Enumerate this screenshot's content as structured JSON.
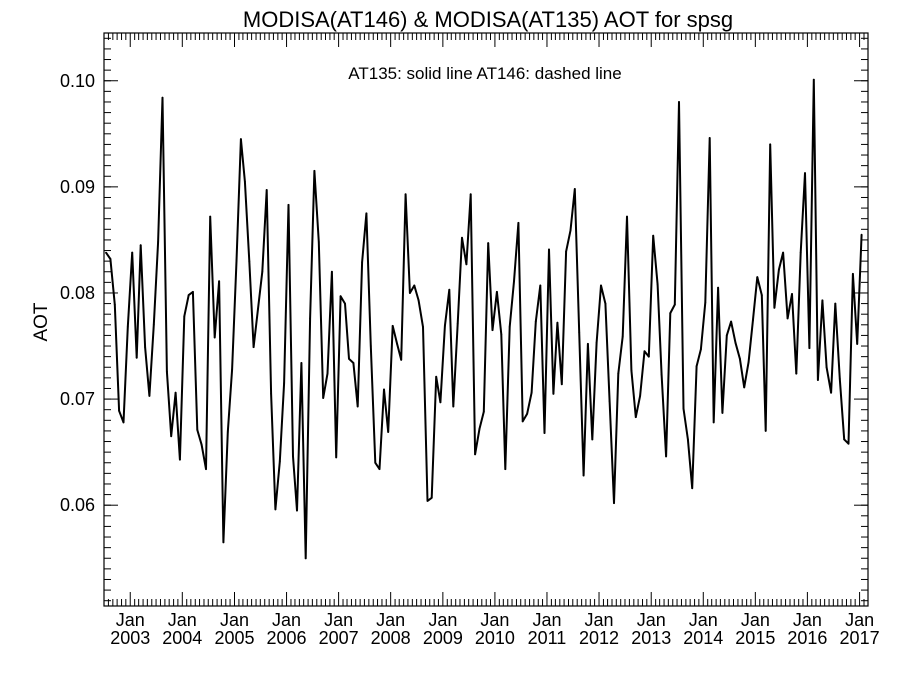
{
  "chart_data": {
    "type": "line",
    "title": "MODISA(AT146) & MODISA(AT135)  AOT for spsg",
    "annotation": "AT135: solid line   AT146: dashed line",
    "ylabel": "AOT",
    "xlabel": "",
    "ylim": [
      0.0505,
      0.1045
    ],
    "xlim": [
      "2002-07-01",
      "2017-03-01"
    ],
    "yticks": [
      "0.06",
      "0.07",
      "0.08",
      "0.09",
      "0.10"
    ],
    "xticks": [
      {
        "month": "Jan",
        "year": "2003"
      },
      {
        "month": "Jan",
        "year": "2004"
      },
      {
        "month": "Jan",
        "year": "2005"
      },
      {
        "month": "Jan",
        "year": "2006"
      },
      {
        "month": "Jan",
        "year": "2007"
      },
      {
        "month": "Jan",
        "year": "2008"
      },
      {
        "month": "Jan",
        "year": "2009"
      },
      {
        "month": "Jan",
        "year": "2010"
      },
      {
        "month": "Jan",
        "year": "2011"
      },
      {
        "month": "Jan",
        "year": "2012"
      },
      {
        "month": "Jan",
        "year": "2013"
      },
      {
        "month": "Jan",
        "year": "2014"
      },
      {
        "month": "Jan",
        "year": "2015"
      },
      {
        "month": "Jan",
        "year": "2016"
      },
      {
        "month": "Jan",
        "year": "2017"
      }
    ],
    "grid": false,
    "legend": "none",
    "series": [
      {
        "name": "AT135",
        "line_style": "solid",
        "color": "#000000",
        "points": [
          [
            "2002-07-15",
            0.0838
          ],
          [
            "2002-08-15",
            0.0832
          ],
          [
            "2002-09-15",
            0.0789
          ],
          [
            "2002-10-15",
            0.0689
          ],
          [
            "2002-11-15",
            0.0678
          ],
          [
            "2002-12-15",
            0.0768
          ],
          [
            "2003-01-15",
            0.0838
          ],
          [
            "2003-02-15",
            0.0739
          ],
          [
            "2003-03-15",
            0.0845
          ],
          [
            "2003-04-15",
            0.0749
          ],
          [
            "2003-05-15",
            0.0703
          ],
          [
            "2003-06-15",
            0.077
          ],
          [
            "2003-07-15",
            0.0848
          ],
          [
            "2003-08-15",
            0.0984
          ],
          [
            "2003-09-15",
            0.0726
          ],
          [
            "2003-10-15",
            0.0665
          ],
          [
            "2003-11-15",
            0.0706
          ],
          [
            "2003-12-15",
            0.0643
          ],
          [
            "2004-01-15",
            0.0778
          ],
          [
            "2004-02-15",
            0.0798
          ],
          [
            "2004-03-15",
            0.0801
          ],
          [
            "2004-04-15",
            0.0671
          ],
          [
            "2004-05-15",
            0.0657
          ],
          [
            "2004-06-15",
            0.0634
          ],
          [
            "2004-07-15",
            0.0872
          ],
          [
            "2004-08-15",
            0.0758
          ],
          [
            "2004-09-15",
            0.0811
          ],
          [
            "2004-10-15",
            0.0565
          ],
          [
            "2004-11-15",
            0.0669
          ],
          [
            "2004-12-15",
            0.0728
          ],
          [
            "2005-01-15",
            0.083
          ],
          [
            "2005-02-15",
            0.0945
          ],
          [
            "2005-03-15",
            0.0905
          ],
          [
            "2005-04-15",
            0.083
          ],
          [
            "2005-05-15",
            0.0749
          ],
          [
            "2005-06-15",
            0.0785
          ],
          [
            "2005-07-15",
            0.082
          ],
          [
            "2005-08-15",
            0.0897
          ],
          [
            "2005-09-15",
            0.0705
          ],
          [
            "2005-10-15",
            0.0596
          ],
          [
            "2005-11-15",
            0.0641
          ],
          [
            "2005-12-15",
            0.0715
          ],
          [
            "2006-01-15",
            0.0883
          ],
          [
            "2006-02-15",
            0.0646
          ],
          [
            "2006-03-15",
            0.0595
          ],
          [
            "2006-04-15",
            0.0734
          ],
          [
            "2006-05-15",
            0.055
          ],
          [
            "2006-06-15",
            0.0776
          ],
          [
            "2006-07-15",
            0.0915
          ],
          [
            "2006-08-15",
            0.0848
          ],
          [
            "2006-09-15",
            0.0701
          ],
          [
            "2006-10-15",
            0.0724
          ],
          [
            "2006-11-15",
            0.082
          ],
          [
            "2006-12-15",
            0.0645
          ],
          [
            "2007-01-15",
            0.0797
          ],
          [
            "2007-02-15",
            0.079
          ],
          [
            "2007-03-15",
            0.0738
          ],
          [
            "2007-04-15",
            0.0734
          ],
          [
            "2007-05-15",
            0.0693
          ],
          [
            "2007-06-15",
            0.0829
          ],
          [
            "2007-07-15",
            0.0875
          ],
          [
            "2007-08-15",
            0.075
          ],
          [
            "2007-09-15",
            0.064
          ],
          [
            "2007-10-15",
            0.0634
          ],
          [
            "2007-11-15",
            0.0709
          ],
          [
            "2007-12-15",
            0.0669
          ],
          [
            "2008-01-15",
            0.0769
          ],
          [
            "2008-02-15",
            0.0752
          ],
          [
            "2008-03-15",
            0.0737
          ],
          [
            "2008-04-15",
            0.0893
          ],
          [
            "2008-05-15",
            0.08
          ],
          [
            "2008-06-15",
            0.0807
          ],
          [
            "2008-07-15",
            0.0793
          ],
          [
            "2008-08-15",
            0.0768
          ],
          [
            "2008-09-15",
            0.0604
          ],
          [
            "2008-10-15",
            0.0607
          ],
          [
            "2008-11-15",
            0.0721
          ],
          [
            "2008-12-15",
            0.0697
          ],
          [
            "2009-01-15",
            0.0769
          ],
          [
            "2009-02-15",
            0.0803
          ],
          [
            "2009-03-15",
            0.0693
          ],
          [
            "2009-04-15",
            0.0771
          ],
          [
            "2009-05-15",
            0.0852
          ],
          [
            "2009-06-15",
            0.0827
          ],
          [
            "2009-07-15",
            0.0893
          ],
          [
            "2009-08-15",
            0.0648
          ],
          [
            "2009-09-15",
            0.0672
          ],
          [
            "2009-10-15",
            0.0688
          ],
          [
            "2009-11-15",
            0.0847
          ],
          [
            "2009-12-15",
            0.0765
          ],
          [
            "2010-01-15",
            0.0801
          ],
          [
            "2010-02-15",
            0.0761
          ],
          [
            "2010-03-15",
            0.0634
          ],
          [
            "2010-04-15",
            0.0768
          ],
          [
            "2010-05-15",
            0.0811
          ],
          [
            "2010-06-15",
            0.0866
          ],
          [
            "2010-07-15",
            0.0679
          ],
          [
            "2010-08-15",
            0.0686
          ],
          [
            "2010-09-15",
            0.0706
          ],
          [
            "2010-10-15",
            0.0773
          ],
          [
            "2010-11-15",
            0.0807
          ],
          [
            "2010-12-15",
            0.0668
          ],
          [
            "2011-01-15",
            0.0841
          ],
          [
            "2011-02-15",
            0.0705
          ],
          [
            "2011-03-15",
            0.0772
          ],
          [
            "2011-04-15",
            0.0714
          ],
          [
            "2011-05-15",
            0.0839
          ],
          [
            "2011-06-15",
            0.0859
          ],
          [
            "2011-07-15",
            0.0898
          ],
          [
            "2011-08-15",
            0.0763
          ],
          [
            "2011-09-15",
            0.0628
          ],
          [
            "2011-10-15",
            0.0752
          ],
          [
            "2011-11-15",
            0.0662
          ],
          [
            "2011-12-15",
            0.0753
          ],
          [
            "2012-01-15",
            0.0807
          ],
          [
            "2012-02-15",
            0.079
          ],
          [
            "2012-03-15",
            0.0698
          ],
          [
            "2012-04-15",
            0.0602
          ],
          [
            "2012-05-15",
            0.0724
          ],
          [
            "2012-06-15",
            0.0759
          ],
          [
            "2012-07-15",
            0.0872
          ],
          [
            "2012-08-15",
            0.0727
          ],
          [
            "2012-09-15",
            0.0683
          ],
          [
            "2012-10-15",
            0.0703
          ],
          [
            "2012-11-15",
            0.0745
          ],
          [
            "2012-12-15",
            0.074
          ],
          [
            "2013-01-15",
            0.0854
          ],
          [
            "2013-02-15",
            0.0808
          ],
          [
            "2013-03-15",
            0.0723
          ],
          [
            "2013-04-15",
            0.0646
          ],
          [
            "2013-05-15",
            0.0781
          ],
          [
            "2013-06-15",
            0.0789
          ],
          [
            "2013-07-15",
            0.098
          ],
          [
            "2013-08-15",
            0.0691
          ],
          [
            "2013-09-15",
            0.0662
          ],
          [
            "2013-10-15",
            0.0616
          ],
          [
            "2013-11-15",
            0.0731
          ],
          [
            "2013-12-15",
            0.0747
          ],
          [
            "2014-01-15",
            0.0791
          ],
          [
            "2014-02-15",
            0.0946
          ],
          [
            "2014-03-15",
            0.0678
          ],
          [
            "2014-04-15",
            0.0805
          ],
          [
            "2014-05-15",
            0.0687
          ],
          [
            "2014-06-15",
            0.076
          ],
          [
            "2014-07-15",
            0.0773
          ],
          [
            "2014-08-15",
            0.0753
          ],
          [
            "2014-09-15",
            0.0738
          ],
          [
            "2014-10-15",
            0.0711
          ],
          [
            "2014-11-15",
            0.0735
          ],
          [
            "2014-12-15",
            0.0774
          ],
          [
            "2015-01-15",
            0.0815
          ],
          [
            "2015-02-15",
            0.0798
          ],
          [
            "2015-03-15",
            0.067
          ],
          [
            "2015-04-15",
            0.094
          ],
          [
            "2015-05-15",
            0.0786
          ],
          [
            "2015-06-15",
            0.0822
          ],
          [
            "2015-07-15",
            0.0838
          ],
          [
            "2015-08-15",
            0.0776
          ],
          [
            "2015-09-15",
            0.0799
          ],
          [
            "2015-10-15",
            0.0724
          ],
          [
            "2015-11-15",
            0.0838
          ],
          [
            "2015-12-15",
            0.0913
          ],
          [
            "2016-01-15",
            0.0748
          ],
          [
            "2016-02-15",
            0.1001
          ],
          [
            "2016-03-15",
            0.0718
          ],
          [
            "2016-04-15",
            0.0793
          ],
          [
            "2016-05-15",
            0.073
          ],
          [
            "2016-06-15",
            0.0706
          ],
          [
            "2016-07-15",
            0.079
          ],
          [
            "2016-08-15",
            0.0719
          ],
          [
            "2016-09-15",
            0.0662
          ],
          [
            "2016-10-15",
            0.0658
          ],
          [
            "2016-11-15",
            0.0818
          ],
          [
            "2016-12-15",
            0.0752
          ],
          [
            "2017-01-15",
            0.0855
          ]
        ]
      }
    ]
  }
}
